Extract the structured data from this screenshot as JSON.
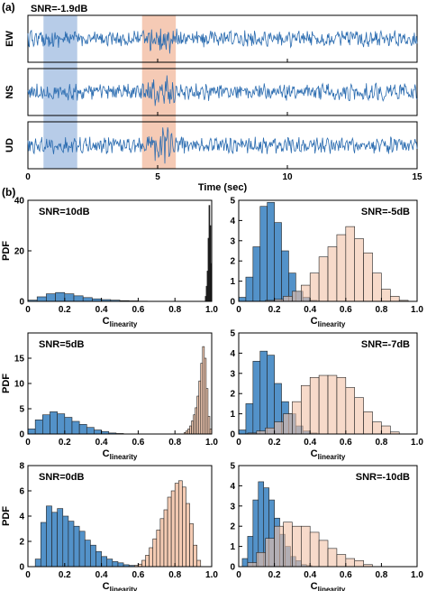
{
  "panel_labels": {
    "a": "(a)",
    "b": "(b)"
  },
  "colors": {
    "signal": "#2b6cb0",
    "blue_fill": "#4a8cc6",
    "orange_fill": "#f2c2a6",
    "overlap_fill": "#a78f8f",
    "black_fill": "#111111",
    "blue_band": "#9fbbe0",
    "orange_band": "#f1b89c"
  },
  "icons": {
    "waveform": "seismic-trace"
  },
  "chart_data": [
    {
      "type": "line",
      "title": "SNR=-1.9dB",
      "xlabel": "Time (sec)",
      "xlim": [
        0,
        15
      ],
      "xticks": [
        "0",
        "5",
        "10",
        "15"
      ],
      "tick_values": [
        0,
        5,
        10,
        15
      ],
      "channels": [
        "EW",
        "NS",
        "UD"
      ],
      "highlight_noise": [
        0.6,
        1.9
      ],
      "highlight_signal": [
        4.4,
        5.7
      ],
      "event_time": 5.2
    },
    {
      "type": "bar",
      "annotation": "SNR=10dB",
      "xlabel_main": "C",
      "xlabel_sub": "linearity",
      "ylabel": "PDF",
      "xlim": [
        0,
        1
      ],
      "ylim": [
        0,
        40
      ],
      "xticks": [
        "0",
        "0.2",
        "0.4",
        "0.6",
        "0.8",
        "1.0"
      ],
      "yticks": [
        "0",
        "20",
        "40"
      ],
      "ytick_values": [
        0,
        20,
        40
      ],
      "series": [
        {
          "x": [
            0.0,
            0.05,
            0.1,
            0.15,
            0.2,
            0.25,
            0.3,
            0.35,
            0.4,
            0.45,
            0.5,
            0.55,
            0.6,
            0.65
          ],
          "values": [
            0.5,
            1.8,
            3.0,
            3.5,
            3.0,
            2.2,
            1.5,
            1.0,
            0.7,
            0.5,
            0.3,
            0.2,
            0.1,
            0.05
          ],
          "width": 0.05,
          "fill": "#4a8cc6",
          "opacity": 0.95
        },
        {
          "x": [
            0.965,
            0.97,
            0.975,
            0.98,
            0.985,
            0.99,
            0.995
          ],
          "values": [
            2,
            6,
            12,
            25,
            38,
            30,
            15
          ],
          "width": 0.005,
          "fill": "#111111",
          "opacity": 1
        }
      ]
    },
    {
      "type": "bar",
      "annotation": "SNR=-5dB",
      "xlabel_main": "C",
      "xlabel_sub": "linearity",
      "ylabel": "",
      "xlim": [
        0,
        1
      ],
      "ylim": [
        0,
        5
      ],
      "xticks": [
        "0",
        "0.2",
        "0.4",
        "0.6",
        "0.8",
        "1.0"
      ],
      "yticks": [
        "0",
        "1",
        "2",
        "3",
        "4",
        "5"
      ],
      "ytick_values": [
        0,
        1,
        2,
        3,
        4,
        5
      ],
      "series": [
        {
          "x": [
            0.0,
            0.04,
            0.08,
            0.12,
            0.16,
            0.2,
            0.24,
            0.28,
            0.32,
            0.36,
            0.4
          ],
          "values": [
            0.2,
            1.2,
            2.7,
            4.7,
            4.9,
            3.9,
            2.5,
            1.4,
            0.5,
            0.2,
            0.05
          ],
          "width": 0.04,
          "fill": "#4a8cc6",
          "opacity": 0.95
        },
        {
          "x": [
            0.15,
            0.2,
            0.25,
            0.3,
            0.35,
            0.4,
            0.45,
            0.5,
            0.55,
            0.6,
            0.65,
            0.7,
            0.75,
            0.8,
            0.85,
            0.9
          ],
          "values": [
            0.05,
            0.1,
            0.25,
            0.5,
            0.8,
            1.4,
            2.2,
            2.7,
            3.3,
            3.7,
            3.1,
            2.4,
            1.4,
            0.6,
            0.25,
            0.05
          ],
          "width": 0.05,
          "fill": "#f2c2a6",
          "opacity": 0.6
        }
      ]
    },
    {
      "type": "bar",
      "annotation": "SNR=5dB",
      "xlabel_main": "C",
      "xlabel_sub": "linearity",
      "ylabel": "PDF",
      "xlim": [
        0,
        1
      ],
      "ylim": [
        0,
        20
      ],
      "xticks": [
        "0",
        "0.2",
        "0.4",
        "0.6",
        "0.8",
        "1.0"
      ],
      "yticks": [
        "0",
        "5",
        "10",
        "15"
      ],
      "ytick_values": [
        0,
        5,
        10,
        15
      ],
      "series": [
        {
          "x": [
            0.0,
            0.04,
            0.08,
            0.12,
            0.16,
            0.2,
            0.24,
            0.28,
            0.32,
            0.36,
            0.4,
            0.44,
            0.48
          ],
          "values": [
            1.0,
            2.8,
            3.8,
            4.4,
            4.0,
            3.3,
            2.5,
            1.9,
            1.3,
            0.8,
            0.5,
            0.2,
            0.1
          ],
          "width": 0.04,
          "fill": "#4a8cc6",
          "opacity": 0.95
        },
        {
          "x": [
            0.85,
            0.86,
            0.87,
            0.88,
            0.89,
            0.9,
            0.91,
            0.92,
            0.93,
            0.94,
            0.95,
            0.96,
            0.97,
            0.98,
            0.99
          ],
          "values": [
            0.3,
            0.6,
            1.0,
            1.6,
            2.6,
            3.8,
            5.2,
            7.5,
            10.5,
            14.0,
            17.3,
            15.0,
            9.0,
            3.5,
            1.0
          ],
          "width": 0.01,
          "fill": "#f2c2a6",
          "opacity": 0.85
        }
      ]
    },
    {
      "type": "bar",
      "annotation": "SNR=-7dB",
      "xlabel_main": "C",
      "xlabel_sub": "linearity",
      "ylabel": "",
      "xlim": [
        0,
        1
      ],
      "ylim": [
        0,
        5
      ],
      "xticks": [
        "0",
        "0.2",
        "0.4",
        "0.6",
        "0.8",
        "1.0"
      ],
      "yticks": [
        "0",
        "1",
        "2",
        "3",
        "4",
        "5"
      ],
      "ytick_values": [
        0,
        1,
        2,
        3,
        4,
        5
      ],
      "series": [
        {
          "x": [
            0.0,
            0.04,
            0.08,
            0.12,
            0.16,
            0.2,
            0.24,
            0.28,
            0.32,
            0.36,
            0.4
          ],
          "values": [
            0.2,
            1.5,
            3.6,
            4.1,
            3.9,
            2.5,
            1.6,
            1.0,
            0.4,
            0.15,
            0.05
          ],
          "width": 0.04,
          "fill": "#4a8cc6",
          "opacity": 0.95
        },
        {
          "x": [
            0.05,
            0.1,
            0.15,
            0.2,
            0.25,
            0.3,
            0.35,
            0.4,
            0.45,
            0.5,
            0.55,
            0.6,
            0.65,
            0.7,
            0.75,
            0.8,
            0.85
          ],
          "values": [
            0.05,
            0.15,
            0.3,
            0.6,
            1.0,
            1.6,
            2.4,
            2.8,
            2.9,
            2.9,
            2.8,
            2.3,
            1.8,
            1.1,
            0.6,
            0.4,
            0.1
          ],
          "width": 0.05,
          "fill": "#f2c2a6",
          "opacity": 0.6
        }
      ]
    },
    {
      "type": "bar",
      "annotation": "SNR=0dB",
      "xlabel_main": "C",
      "xlabel_sub": "linearity",
      "ylabel": "PDF",
      "xlim": [
        0,
        1
      ],
      "ylim": [
        0,
        8
      ],
      "xticks": [
        "0",
        "0.2",
        "0.4",
        "0.6",
        "0.8",
        "1.0"
      ],
      "yticks": [
        "0",
        "2",
        "4",
        "6",
        "8"
      ],
      "ytick_values": [
        0,
        2,
        4,
        6,
        8
      ],
      "series": [
        {
          "x": [
            0.04,
            0.07,
            0.1,
            0.13,
            0.16,
            0.19,
            0.22,
            0.25,
            0.28,
            0.31,
            0.34,
            0.37,
            0.4,
            0.43,
            0.46,
            0.49,
            0.52,
            0.55
          ],
          "values": [
            0.6,
            3.5,
            4.8,
            4.3,
            4.6,
            4.0,
            3.6,
            3.2,
            2.8,
            2.1,
            1.7,
            1.2,
            0.8,
            0.6,
            0.4,
            0.3,
            0.15,
            0.1
          ],
          "width": 0.03,
          "fill": "#4a8cc6",
          "opacity": 0.95
        },
        {
          "x": [
            0.58,
            0.6,
            0.62,
            0.64,
            0.66,
            0.68,
            0.7,
            0.72,
            0.74,
            0.76,
            0.78,
            0.8,
            0.82,
            0.84,
            0.86,
            0.88,
            0.9,
            0.92
          ],
          "values": [
            0.1,
            0.2,
            0.5,
            0.9,
            1.5,
            2.2,
            2.9,
            3.8,
            4.5,
            5.5,
            6.0,
            6.6,
            6.8,
            6.3,
            5.0,
            3.4,
            1.7,
            0.5
          ],
          "width": 0.02,
          "fill": "#f2c2a6",
          "opacity": 0.85
        }
      ]
    },
    {
      "type": "bar",
      "annotation": "SNR=-10dB",
      "xlabel_main": "C",
      "xlabel_sub": "linearity",
      "ylabel": "",
      "xlim": [
        0,
        1
      ],
      "ylim": [
        0,
        5
      ],
      "xticks": [
        "0",
        "0.2",
        "0.4",
        "0.6",
        "0.8",
        "1.0"
      ],
      "yticks": [
        "0",
        "1",
        "2",
        "3",
        "4",
        "5"
      ],
      "ytick_values": [
        0,
        1,
        2,
        3,
        4,
        5
      ],
      "series": [
        {
          "x": [
            0.02,
            0.05,
            0.08,
            0.11,
            0.14,
            0.17,
            0.2,
            0.23,
            0.26,
            0.29,
            0.32,
            0.35,
            0.38
          ],
          "values": [
            0.4,
            1.5,
            3.3,
            4.2,
            3.9,
            3.3,
            2.4,
            1.6,
            1.0,
            0.5,
            0.3,
            0.1,
            0.05
          ],
          "width": 0.03,
          "fill": "#4a8cc6",
          "opacity": 0.95
        },
        {
          "x": [
            0.05,
            0.1,
            0.15,
            0.2,
            0.25,
            0.3,
            0.35,
            0.4,
            0.45,
            0.5,
            0.55,
            0.6,
            0.65,
            0.7
          ],
          "values": [
            0.2,
            0.7,
            1.4,
            2.0,
            2.2,
            2.0,
            2.0,
            1.7,
            1.3,
            0.9,
            0.6,
            0.4,
            0.3,
            0.1
          ],
          "width": 0.05,
          "fill": "#f2c2a6",
          "opacity": 0.6
        }
      ]
    }
  ]
}
